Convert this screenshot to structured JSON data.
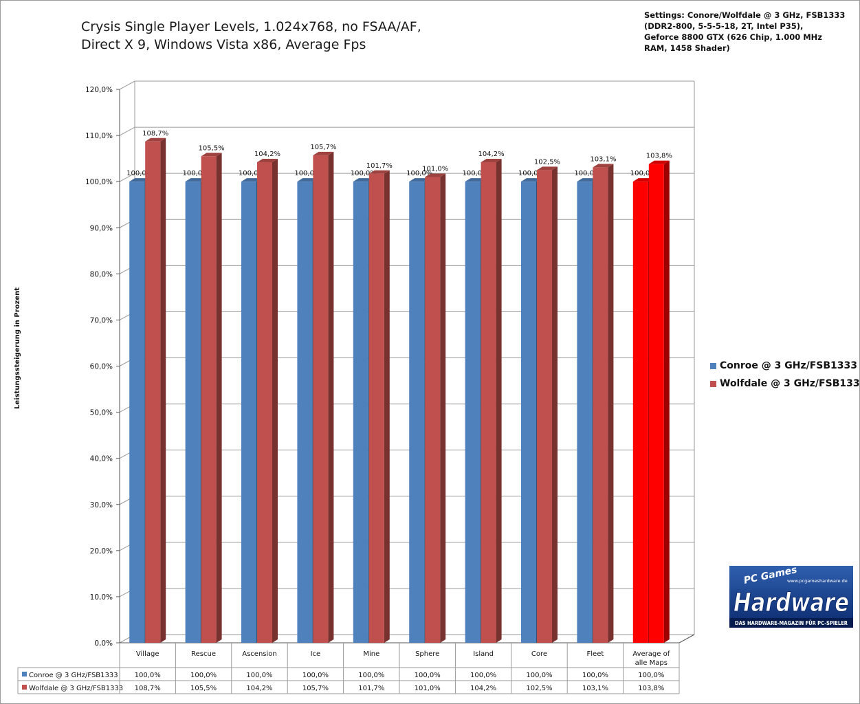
{
  "title": {
    "line1": "Crysis Single Player Levels, 1.024x768, no FSAA/AF,",
    "line2": "Direct X 9, Windows Vista x86, Average Fps"
  },
  "settings": {
    "line1": "Settings: Conore/Wolfdale @ 3 GHz, FSB1333",
    "line2": "(DDR2-800, 5-5-5-18, 2T, Intel P35),",
    "line3": "Geforce 8800 GTX (626 Chip, 1.000 MHz",
    "line4": "RAM, 1458 Shader)"
  },
  "logo": {
    "small": "PC Games",
    "big": "Hardware",
    "url": "www.pcgameshardware.de",
    "tagline": "DAS HARDWARE-MAGAZIN FÜR PC-SPIELER"
  },
  "colors": {
    "conroe": "#4f81bd",
    "wolfdale": "#c0504d",
    "highlight": "#ff0000",
    "grid": "#9a9a9a"
  },
  "chart_data": {
    "type": "bar",
    "ylabel": "Leistungssteigerung in Prozent",
    "ylim": [
      0,
      120
    ],
    "yticks": [
      "0,0%",
      "10,0%",
      "20,0%",
      "30,0%",
      "40,0%",
      "50,0%",
      "60,0%",
      "70,0%",
      "80,0%",
      "90,0%",
      "100,0%",
      "110,0%",
      "120,0%"
    ],
    "categories": [
      "Village",
      "Rescue",
      "Ascension",
      "Ice",
      "Mine",
      "Sphere",
      "Island",
      "Core",
      "Fleet",
      [
        "Average of",
        "alle Maps"
      ]
    ],
    "highlight_category_index": 9,
    "legend_position": "right",
    "grid": true,
    "data_table": true,
    "series": [
      {
        "name": "Conroe @ 3 GHz/FSB1333",
        "values": [
          100.0,
          100.0,
          100.0,
          100.0,
          100.0,
          100.0,
          100.0,
          100.0,
          100.0,
          100.0
        ],
        "labels": [
          "100,0%",
          "100,0%",
          "100,0%",
          "100,0%",
          "100,0%",
          "100,0%",
          "100,0%",
          "100,0%",
          "100,0%",
          "100,0%"
        ]
      },
      {
        "name": "Wolfdale @ 3 GHz/FSB1333",
        "values": [
          108.7,
          105.5,
          104.2,
          105.7,
          101.7,
          101.0,
          104.2,
          102.5,
          103.1,
          103.8
        ],
        "labels": [
          "108,7%",
          "105,5%",
          "104,2%",
          "105,7%",
          "101,7%",
          "101,0%",
          "104,2%",
          "102,5%",
          "103,1%",
          "103,8%"
        ]
      }
    ]
  }
}
